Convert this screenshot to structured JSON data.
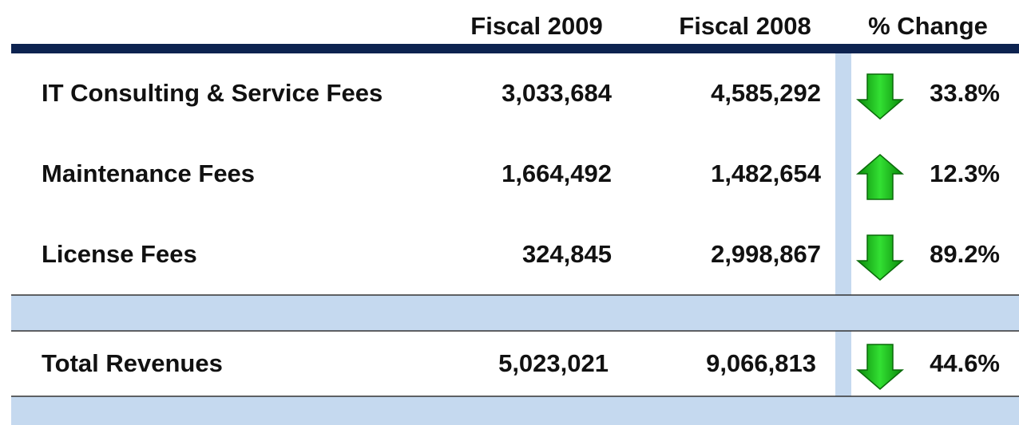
{
  "table": {
    "headers": [
      "Fiscal 2009",
      "Fiscal 2008",
      "% Change"
    ],
    "rows": [
      {
        "label": "IT Consulting & Service Fees",
        "fiscal_2009": "3,033,684",
        "fiscal_2008": "4,585,292",
        "direction": "down",
        "change": "33.8%"
      },
      {
        "label": "Maintenance Fees",
        "fiscal_2009": "1,664,492",
        "fiscal_2008": "1,482,654",
        "direction": "up",
        "change": "12.3%"
      },
      {
        "label": "License Fees",
        "fiscal_2009": "324,845",
        "fiscal_2008": "2,998,867",
        "direction": "down",
        "change": "89.2%"
      }
    ],
    "total": {
      "label": "Total Revenues",
      "fiscal_2009": "5,023,021",
      "fiscal_2008": "9,066,813",
      "direction": "down",
      "change": "44.6%"
    }
  }
}
